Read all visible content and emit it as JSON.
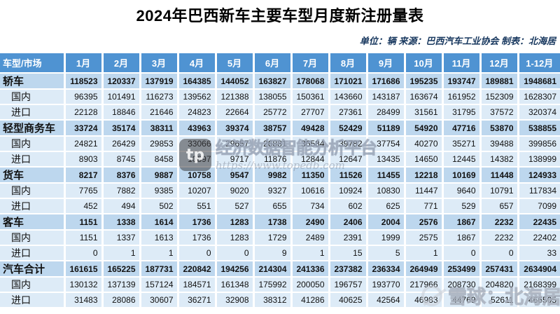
{
  "title": "2024年巴西新车主要车型月度新注册量表",
  "meta": "单位：辆  来源：巴西汽车工业协会  制表：北海居",
  "watermark_center": {
    "logo": "topedb-logo",
    "brand": "经济数据智能分析平台",
    "url": "https://www.topedb.com"
  },
  "watermark_corner": {
    "logo": "xueqiu-logo",
    "text": "雪球：北海居"
  },
  "colors": {
    "header_bg": "#4f93d2",
    "header_text": "#ffffff",
    "section_row_bg": "#BDD7EE",
    "sub_row_bg": "#DDEBF7",
    "meta_text": "#17375E"
  },
  "chart_data": {
    "type": "table",
    "title": "2024年巴西新车主要车型月度新注册量表",
    "unit": "辆",
    "source": "巴西汽车工业协会",
    "author": "北海居",
    "columns": [
      "车型/市场",
      "1月",
      "2月",
      "3月",
      "4月",
      "5月",
      "6月",
      "7月",
      "8月",
      "9月",
      "10月",
      "11月",
      "12月",
      "1-12月"
    ],
    "rows": [
      {
        "label": "轿车",
        "type": "section",
        "values": [
          118523,
          120337,
          137919,
          164385,
          144052,
          163827,
          178068,
          171021,
          171686,
          195235,
          193747,
          189881,
          1948681
        ]
      },
      {
        "label": "国内",
        "type": "sub",
        "values": [
          96395,
          101491,
          116273,
          139562,
          121388,
          138055,
          150361,
          143660,
          143187,
          163674,
          161952,
          152309,
          1628307
        ]
      },
      {
        "label": "进口",
        "type": "sub",
        "values": [
          22128,
          18846,
          21646,
          24823,
          22664,
          25772,
          27707,
          27361,
          28499,
          31561,
          31795,
          37572,
          320374
        ]
      },
      {
        "label": "轻型商务车",
        "type": "section",
        "values": [
          33724,
          35174,
          38311,
          43963,
          39374,
          38757,
          49428,
          52429,
          51189,
          54920,
          47716,
          53870,
          538855
        ]
      },
      {
        "label": "国内",
        "type": "sub",
        "values": [
          24821,
          26429,
          29853,
          33066,
          29657,
          26881,
          36584,
          39782,
          37754,
          40270,
          35271,
          39488,
          399856
        ]
      },
      {
        "label": "进口",
        "type": "sub",
        "values": [
          8903,
          8745,
          8458,
          10897,
          9717,
          11876,
          12844,
          12647,
          13435,
          14650,
          12445,
          14382,
          138999
        ]
      },
      {
        "label": "货车",
        "type": "section",
        "values": [
          8217,
          8376,
          9887,
          10758,
          9547,
          9982,
          11350,
          11526,
          11455,
          12218,
          10169,
          11448,
          124933
        ]
      },
      {
        "label": "国内",
        "type": "sub",
        "values": [
          7765,
          7882,
          9385,
          10207,
          9020,
          9327,
          10616,
          10924,
          10830,
          11447,
          9640,
          10791,
          117834
        ]
      },
      {
        "label": "进口",
        "type": "sub",
        "values": [
          452,
          494,
          502,
          551,
          527,
          655,
          734,
          602,
          625,
          771,
          529,
          657,
          7099
        ]
      },
      {
        "label": "客车",
        "type": "section",
        "values": [
          1151,
          1338,
          1614,
          1736,
          1283,
          1738,
          2490,
          2406,
          2004,
          2576,
          1867,
          2232,
          22435
        ]
      },
      {
        "label": "国内",
        "type": "sub",
        "values": [
          1151,
          1337,
          1613,
          1736,
          1283,
          1729,
          2489,
          2391,
          1999,
          2575,
          1867,
          2232,
          22402
        ]
      },
      {
        "label": "进口",
        "type": "sub",
        "values": [
          0,
          1,
          1,
          0,
          0,
          9,
          1,
          15,
          5,
          1,
          0,
          0,
          33
        ]
      },
      {
        "label": "汽车合计",
        "type": "section",
        "values": [
          161615,
          165225,
          187731,
          220842,
          194256,
          214304,
          241336,
          237382,
          236334,
          264949,
          253499,
          257431,
          2634904
        ]
      },
      {
        "label": "国内",
        "type": "sub",
        "values": [
          130132,
          137139,
          157124,
          184571,
          161348,
          175992,
          200050,
          196757,
          193770,
          217966,
          208730,
          204820,
          2168399
        ]
      },
      {
        "label": "进口",
        "type": "sub",
        "values": [
          31483,
          28086,
          30607,
          36271,
          32908,
          38312,
          41286,
          40625,
          42564,
          46983,
          44769,
          52611,
          466505
        ]
      }
    ]
  }
}
